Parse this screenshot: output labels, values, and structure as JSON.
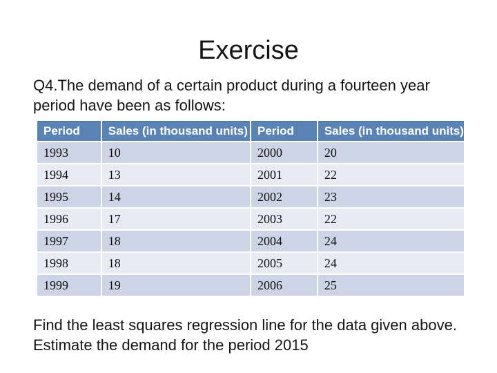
{
  "slide": {
    "title": "Exercise",
    "intro_line1": "Q4.The demand of a certain product during a fourteen year",
    "intro_line2": "period have been as follows:",
    "footer_line1": "Find the least squares regression line for the data given above.",
    "footer_line2": "Estimate the demand for the period 2015"
  },
  "table": {
    "headers": [
      "Period",
      "Sales (in thousand units)",
      "Period",
      "Sales (in thousand units)"
    ],
    "rows": [
      [
        "1993",
        "10",
        "2000",
        "20"
      ],
      [
        "1994",
        "13",
        "2001",
        "22"
      ],
      [
        "1995",
        "14",
        "2002",
        "23"
      ],
      [
        "1996",
        "17",
        "2003",
        "22"
      ],
      [
        "1997",
        "18",
        "2004",
        "24"
      ],
      [
        "1998",
        "18",
        "2005",
        "24"
      ],
      [
        "1999",
        "19",
        "2006",
        "25"
      ]
    ]
  },
  "colors": {
    "header_bg": "#5a83b5",
    "header_text": "#ffffff",
    "row_band_dark": "#cdd4e5",
    "row_band_light": "#e9ebf4",
    "gridline": "#ffffff",
    "text": "#141414"
  }
}
